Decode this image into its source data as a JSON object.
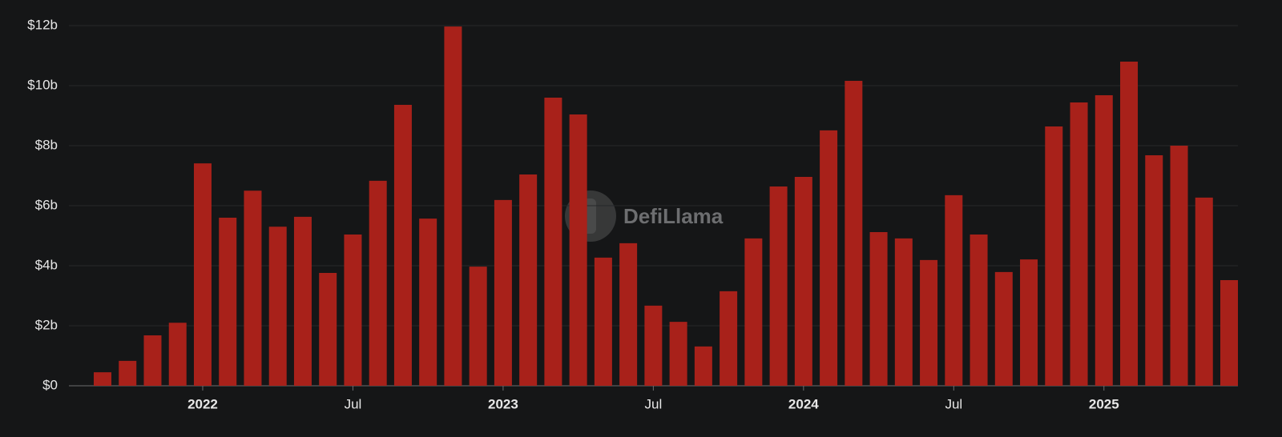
{
  "chart_data": {
    "type": "bar",
    "watermark": "DefiLlama",
    "categories": [
      null,
      null,
      null,
      null,
      "2022",
      null,
      null,
      null,
      null,
      null,
      "Jul",
      null,
      null,
      null,
      null,
      null,
      "2023",
      null,
      null,
      null,
      null,
      null,
      "Jul",
      null,
      null,
      null,
      null,
      null,
      "2024",
      null,
      null,
      null,
      null,
      null,
      "Jul",
      null,
      null,
      null,
      null,
      null,
      "2025",
      null,
      null,
      null,
      null,
      null
    ],
    "values": [
      0.45,
      0.83,
      1.68,
      2.1,
      7.41,
      5.6,
      6.5,
      5.3,
      5.63,
      3.76,
      5.04,
      6.83,
      9.36,
      5.57,
      11.97,
      3.97,
      6.19,
      7.04,
      9.6,
      9.04,
      4.27,
      4.75,
      2.67,
      2.13,
      1.31,
      3.15,
      4.91,
      6.64,
      6.96,
      8.51,
      10.16,
      5.12,
      4.91,
      4.19,
      6.35,
      5.04,
      3.79,
      4.21,
      8.64,
      9.44,
      9.68,
      10.8,
      7.68,
      8.0,
      6.27,
      3.52
    ],
    "color": "#a8211a",
    "ylim": [
      0,
      12
    ],
    "yticks": [
      {
        "value": 0,
        "label": "$0"
      },
      {
        "value": 2,
        "label": "$2b"
      },
      {
        "value": 4,
        "label": "$4b"
      },
      {
        "value": 6,
        "label": "$6b"
      },
      {
        "value": 8,
        "label": "$8b"
      },
      {
        "value": 10,
        "label": "$10b"
      },
      {
        "value": 12,
        "label": "$12b"
      }
    ],
    "grid": true
  }
}
